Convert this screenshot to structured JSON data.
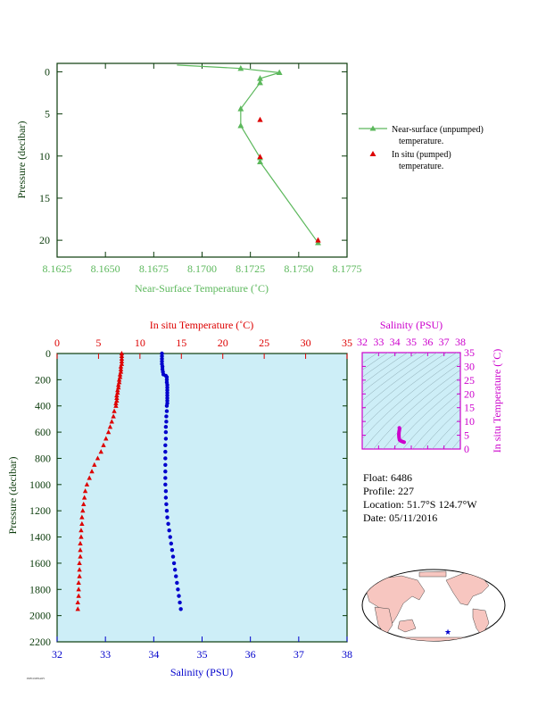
{
  "colors": {
    "near_surface": "#5cb85c",
    "in_situ_red": "#dd0000",
    "salinity_blue": "#0000cc",
    "magenta": "#cc00cc",
    "panel_bg": "#cdeef7",
    "axis_dark": "#0b3b0b"
  },
  "info": {
    "float_label": "Float:",
    "float_value": "6486",
    "profile_label": "Profile:",
    "profile_value": "227",
    "location_label": "Location:",
    "location_value": "51.7°S  124.7°W",
    "date_label": "Date:",
    "date_value": "05/11/2016"
  },
  "footer_tiny": "PRELIMINARY",
  "chart_data": [
    {
      "type": "line",
      "id": "near_surface",
      "xlabel": "Near-Surface Temperature (˚C)",
      "ylabel": "Pressure (decibar)",
      "xlim": [
        8.1625,
        8.1775
      ],
      "ylim": [
        22,
        -1
      ],
      "xticks": [
        "8.1625",
        "8.1650",
        "8.1675",
        "8.1700",
        "8.1725",
        "8.1750",
        "8.1775"
      ],
      "yticks": [
        "0",
        "5",
        "10",
        "15",
        "20"
      ],
      "legend": [
        {
          "label": "Near-surface (unpumped)",
          "label2": "temperature."
        },
        {
          "label": "In situ (pumped)",
          "label2": "temperature."
        }
      ],
      "series": [
        {
          "name": "Near-surface (unpumped) temperature.",
          "marker": "triangle",
          "x": [
            8.1687,
            8.172,
            8.174,
            8.173,
            8.173,
            8.172,
            8.172,
            8.173,
            8.173,
            8.176
          ],
          "y": [
            -0.8,
            -0.4,
            0.1,
            0.8,
            1.3,
            4.4,
            6.4,
            10.2,
            10.7,
            20.3
          ]
        },
        {
          "name": "In situ (pumped) temperature.",
          "marker": "triangle",
          "x": [
            8.173,
            8.173,
            8.176
          ],
          "y": [
            5.7,
            10.1,
            20.0
          ]
        }
      ]
    },
    {
      "type": "scatter",
      "id": "profile",
      "ylabel": "Pressure (decibar)",
      "top_xlabel": "In situ Temperature (˚C)",
      "bottom_xlabel": "Salinity (PSU)",
      "temp_lim": [
        0,
        35
      ],
      "sal_lim": [
        32,
        38
      ],
      "ylim": [
        2200,
        0
      ],
      "temp_ticks": [
        "0",
        "5",
        "10",
        "15",
        "20",
        "25",
        "30",
        "35"
      ],
      "sal_ticks": [
        "32",
        "33",
        "34",
        "35",
        "36",
        "37",
        "38"
      ],
      "yticks": [
        "0",
        "200",
        "400",
        "600",
        "800",
        "1000",
        "1200",
        "1400",
        "1600",
        "1800",
        "2000",
        "2200"
      ],
      "temperature": {
        "p": [
          0,
          20,
          40,
          60,
          80,
          100,
          120,
          140,
          160,
          180,
          200,
          220,
          240,
          260,
          280,
          300,
          320,
          340,
          360,
          380,
          400,
          440,
          480,
          520,
          560,
          600,
          650,
          700,
          750,
          800,
          850,
          900,
          950,
          1000,
          1050,
          1100,
          1150,
          1200,
          1250,
          1300,
          1350,
          1400,
          1450,
          1500,
          1550,
          1600,
          1650,
          1700,
          1750,
          1800,
          1850,
          1900,
          1950
        ],
        "t": [
          7.8,
          7.8,
          7.8,
          7.8,
          7.8,
          7.7,
          7.7,
          7.7,
          7.6,
          7.6,
          7.5,
          7.5,
          7.4,
          7.4,
          7.3,
          7.3,
          7.2,
          7.2,
          7.2,
          7.1,
          7.1,
          6.9,
          6.8,
          6.6,
          6.4,
          6.2,
          5.9,
          5.6,
          5.3,
          4.9,
          4.5,
          4.2,
          3.9,
          3.6,
          3.4,
          3.3,
          3.2,
          3.1,
          3.0,
          3.0,
          2.9,
          2.9,
          2.8,
          2.8,
          2.8,
          2.7,
          2.7,
          2.7,
          2.6,
          2.6,
          2.6,
          2.5,
          2.5
        ]
      },
      "salinity": {
        "p": [
          0,
          20,
          40,
          60,
          80,
          100,
          120,
          140,
          160,
          170,
          180,
          200,
          220,
          240,
          260,
          280,
          300,
          320,
          340,
          360,
          380,
          400,
          440,
          480,
          520,
          560,
          600,
          650,
          700,
          750,
          800,
          850,
          900,
          950,
          1000,
          1050,
          1100,
          1150,
          1200,
          1250,
          1300,
          1350,
          1400,
          1450,
          1500,
          1550,
          1600,
          1650,
          1700,
          1750,
          1800,
          1850,
          1900,
          1950
        ],
        "s": [
          34.17,
          34.17,
          34.17,
          34.17,
          34.17,
          34.18,
          34.18,
          34.19,
          34.2,
          34.25,
          34.27,
          34.27,
          34.27,
          34.28,
          34.28,
          34.28,
          34.28,
          34.28,
          34.28,
          34.28,
          34.28,
          34.27,
          34.27,
          34.26,
          34.26,
          34.25,
          34.25,
          34.25,
          34.24,
          34.24,
          34.24,
          34.24,
          34.24,
          34.24,
          34.24,
          34.25,
          34.25,
          34.26,
          34.27,
          34.28,
          34.3,
          34.32,
          34.34,
          34.36,
          34.38,
          34.4,
          34.42,
          34.44,
          34.46,
          34.48,
          34.5,
          34.52,
          34.54,
          34.56
        ]
      }
    },
    {
      "type": "scatter",
      "id": "ts_diagram",
      "xlabel": "Salinity (PSU)",
      "ylabel": "In situ Temperature (˚C)",
      "xlim": [
        32,
        38
      ],
      "ylim": [
        0,
        35
      ],
      "xticks": [
        "32",
        "33",
        "34",
        "35",
        "36",
        "37",
        "38"
      ],
      "yticks": [
        "0",
        "5",
        "10",
        "15",
        "20",
        "25",
        "30",
        "35"
      ],
      "s": [
        34.27,
        34.28,
        34.28,
        34.27,
        34.25,
        34.24,
        34.25,
        34.28,
        34.34,
        34.42,
        34.5,
        34.56
      ],
      "t": [
        7.7,
        7.5,
        7.2,
        6.8,
        6.2,
        5.3,
        4.2,
        3.3,
        3.0,
        2.8,
        2.6,
        2.5
      ]
    }
  ]
}
